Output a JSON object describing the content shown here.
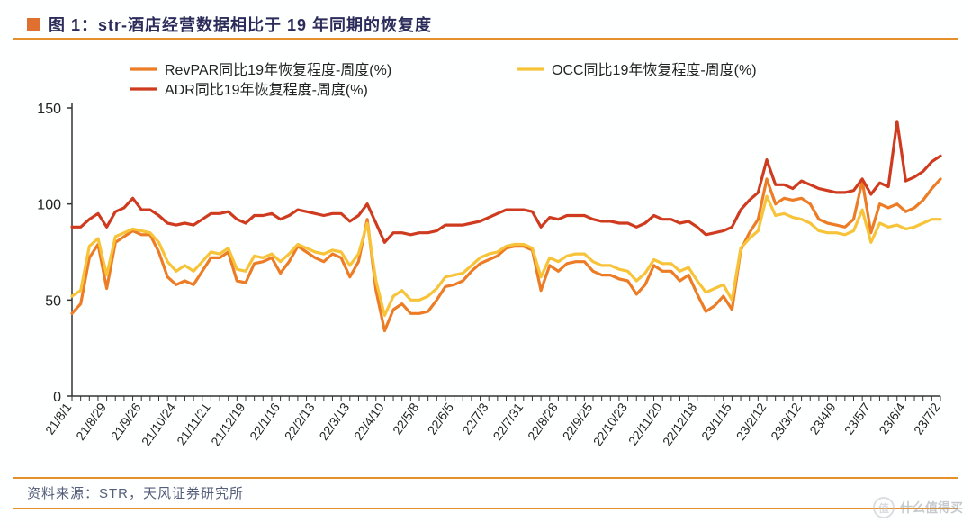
{
  "title": {
    "prefix_box_color": "#e07030",
    "text": "图 1：str-酒店经营数据相比于 19 年同期的恢复度",
    "text_color": "#2c2c5a",
    "fontsize": 18
  },
  "divider_color": "#e6902b",
  "source": "资料来源：STR，天风证券研究所",
  "watermark": "什么值得买",
  "chart": {
    "type": "line",
    "background_color": "#feffff",
    "axis_color": "#333333",
    "tick_color": "#333333",
    "tick_fontsize": 16,
    "xlabel_fontsize": 14,
    "xlabel_rotation_deg": -55,
    "ylim": [
      0,
      150
    ],
    "ytick_step": 50,
    "yticks": [
      0,
      50,
      100,
      150
    ],
    "line_width": 3.2,
    "legend": {
      "position": "top",
      "fontsize": 16,
      "marker_len": 30,
      "items": [
        {
          "label": "RevPAR同比19年恢复程度-周度(%)",
          "color": "#ec7c25"
        },
        {
          "label": "OCC同比19年恢复程度-周度(%)",
          "color": "#f7c338"
        },
        {
          "label": "ADR同比19年恢复程度-周度(%)",
          "color": "#cf3b1f"
        }
      ]
    },
    "x_categories": [
      "21/8/1",
      "21/8/29",
      "21/9/26",
      "21/10/24",
      "21/11/21",
      "21/12/19",
      "22/1/16",
      "22/2/13",
      "22/3/13",
      "22/4/10",
      "22/5/8",
      "22/6/5",
      "22/7/3",
      "22/7/31",
      "22/8/28",
      "22/9/25",
      "22/10/23",
      "22/11/20",
      "22/12/18",
      "23/1/15",
      "23/2/12",
      "23/3/12",
      "23/4/9",
      "23/5/7",
      "23/6/4",
      "23/7/2"
    ],
    "x_step_weeks": 4,
    "series": [
      {
        "name": "RevPAR",
        "color": "#ec7c25",
        "values": [
          43,
          48,
          72,
          79,
          56,
          80,
          83,
          86,
          84,
          84,
          75,
          62,
          58,
          60,
          58,
          65,
          72,
          72,
          75,
          60,
          59,
          69,
          70,
          72,
          64,
          70,
          78,
          75,
          72,
          70,
          74,
          72,
          62,
          70,
          92,
          55,
          34,
          45,
          48,
          43,
          43,
          44,
          50,
          57,
          58,
          60,
          65,
          69,
          71,
          73,
          77,
          78,
          78,
          76,
          55,
          68,
          65,
          69,
          70,
          70,
          65,
          63,
          63,
          61,
          60,
          53,
          58,
          68,
          65,
          65,
          60,
          63,
          53,
          44,
          47,
          52,
          45,
          76,
          85,
          92,
          113,
          100,
          103,
          102,
          103,
          100,
          92,
          90,
          89,
          88,
          92,
          112,
          85,
          100,
          98,
          100,
          96,
          98,
          102,
          108,
          113
        ]
      },
      {
        "name": "OCC",
        "color": "#f7c338",
        "values": [
          52,
          55,
          78,
          82,
          63,
          83,
          85,
          87,
          86,
          85,
          80,
          70,
          65,
          68,
          65,
          70,
          75,
          74,
          77,
          66,
          65,
          73,
          72,
          74,
          70,
          74,
          79,
          77,
          75,
          74,
          76,
          75,
          68,
          74,
          90,
          60,
          42,
          52,
          55,
          50,
          50,
          52,
          56,
          62,
          63,
          64,
          68,
          72,
          74,
          75,
          78,
          79,
          79,
          77,
          62,
          72,
          70,
          73,
          74,
          74,
          70,
          68,
          68,
          66,
          65,
          60,
          64,
          71,
          69,
          69,
          65,
          67,
          60,
          54,
          56,
          58,
          50,
          77,
          82,
          86,
          104,
          94,
          95,
          93,
          92,
          90,
          86,
          85,
          85,
          84,
          86,
          97,
          80,
          90,
          88,
          89,
          87,
          88,
          90,
          92,
          92
        ]
      },
      {
        "name": "ADR",
        "color": "#cf3b1f",
        "values": [
          88,
          88,
          92,
          95,
          88,
          96,
          98,
          103,
          97,
          97,
          94,
          90,
          89,
          90,
          89,
          92,
          95,
          95,
          96,
          92,
          90,
          94,
          94,
          95,
          92,
          94,
          97,
          96,
          95,
          94,
          95,
          95,
          91,
          94,
          100,
          90,
          80,
          85,
          85,
          84,
          85,
          85,
          86,
          89,
          89,
          89,
          90,
          91,
          93,
          95,
          97,
          97,
          97,
          96,
          88,
          93,
          92,
          94,
          94,
          94,
          92,
          91,
          91,
          90,
          90,
          88,
          90,
          94,
          92,
          92,
          90,
          91,
          88,
          84,
          85,
          86,
          88,
          97,
          102,
          106,
          123,
          110,
          110,
          108,
          112,
          110,
          108,
          107,
          106,
          106,
          107,
          113,
          105,
          111,
          109,
          143,
          112,
          114,
          117,
          122,
          125
        ]
      }
    ]
  }
}
